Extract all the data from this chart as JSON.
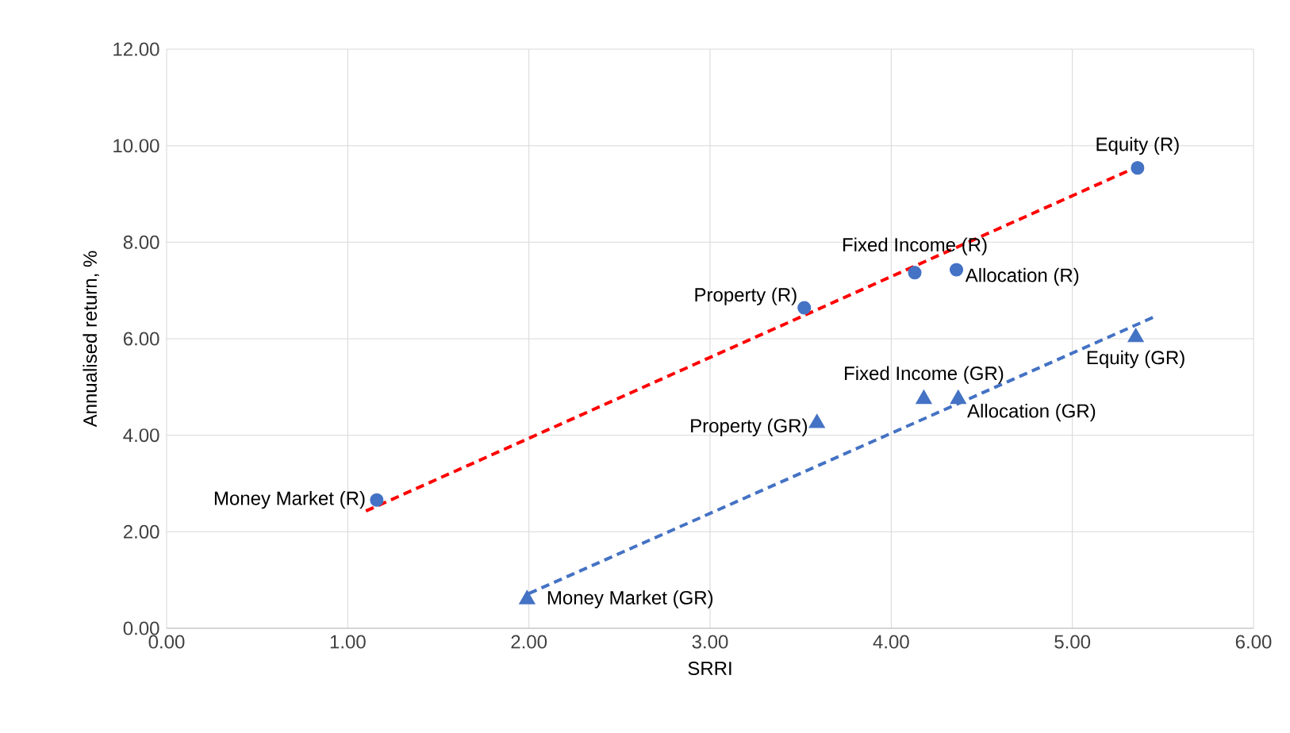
{
  "chart_data": {
    "type": "scatter",
    "xlabel": "SRRI",
    "ylabel": "Annualised return, %",
    "grid": true,
    "xlim": [
      0,
      6
    ],
    "ylim": [
      0,
      12
    ],
    "xticks": [
      {
        "value": 0,
        "label": "0.00"
      },
      {
        "value": 1,
        "label": "1.00"
      },
      {
        "value": 2,
        "label": "2.00"
      },
      {
        "value": 3,
        "label": "3.00"
      },
      {
        "value": 4,
        "label": "4.00"
      },
      {
        "value": 5,
        "label": "5.00"
      },
      {
        "value": 6,
        "label": "6.00"
      }
    ],
    "yticks": [
      {
        "value": 0,
        "label": "0.00"
      },
      {
        "value": 2,
        "label": "2.00"
      },
      {
        "value": 4,
        "label": "4.00"
      },
      {
        "value": 6,
        "label": "6.00"
      },
      {
        "value": 8,
        "label": "8.00"
      },
      {
        "value": 10,
        "label": "10.00"
      },
      {
        "value": 12,
        "label": "12.00"
      }
    ],
    "series": [
      {
        "marker": "circle",
        "color": "#4472c4",
        "x": [
          1.16,
          3.52,
          4.13,
          4.36,
          5.36
        ],
        "values": [
          2.66,
          6.64,
          7.37,
          7.43,
          9.54
        ]
      },
      {
        "marker": "triangle",
        "color": "#4472c4",
        "x": [
          1.99,
          3.59,
          4.18,
          4.37,
          5.35
        ],
        "values": [
          0.6,
          4.25,
          4.75,
          4.75,
          6.03
        ]
      },
      {
        "type": "line",
        "marker": "none",
        "line_style": "dashed",
        "color": "#ff0000",
        "x": [
          1.1,
          5.38
        ],
        "values": [
          2.43,
          9.6
        ]
      },
      {
        "type": "line",
        "marker": "none",
        "line_style": "dashed",
        "color": "#4472c4",
        "x": [
          2.0,
          5.45
        ],
        "values": [
          0.72,
          6.45
        ]
      }
    ],
    "annotations": [
      {
        "text": "Money Market (R)",
        "x": 1.16,
        "y": 2.66
      },
      {
        "text": "Property (R)",
        "x": 3.52,
        "y": 6.64
      },
      {
        "text": "Fixed Income (R)",
        "x": 4.13,
        "y": 7.37
      },
      {
        "text": "Allocation (R)",
        "x": 4.36,
        "y": 7.43
      },
      {
        "text": "Equity (R)",
        "x": 5.36,
        "y": 9.54
      },
      {
        "text": "Money Market (GR)",
        "x": 1.99,
        "y": 0.6
      },
      {
        "text": "Property (GR)",
        "x": 3.59,
        "y": 4.25
      },
      {
        "text": "Fixed Income (GR)",
        "x": 4.18,
        "y": 4.75
      },
      {
        "text": "Allocation (GR)",
        "x": 4.37,
        "y": 4.75
      },
      {
        "text": "Equity (GR)",
        "x": 5.35,
        "y": 6.03
      }
    ]
  }
}
